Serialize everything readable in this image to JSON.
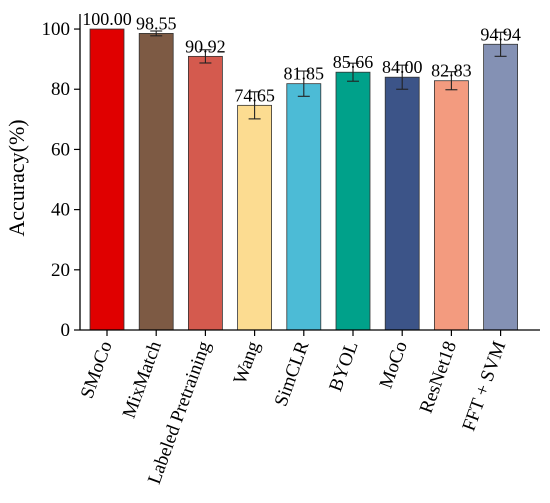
{
  "chart_data": {
    "type": "bar",
    "title": "",
    "xlabel": "",
    "ylabel": "Accuracy(%)",
    "ylim": [
      0,
      105
    ],
    "yticks": [
      0,
      20,
      40,
      60,
      80,
      100
    ],
    "grid": false,
    "categories": [
      "SMoCo",
      "MixMatch",
      "Labeled Pretraining",
      "Wang",
      "SimCLR",
      "BYOL",
      "MoCo",
      "ResNet18",
      "FFT + SVM"
    ],
    "values": [
      100.0,
      98.55,
      90.92,
      74.65,
      81.85,
      85.66,
      84.0,
      82.83,
      94.94
    ],
    "value_labels": [
      "100.00",
      "98.55",
      "90.92",
      "74.65",
      "81.85",
      "85.66",
      "84.00",
      "82.83",
      "94.94"
    ],
    "errors": [
      0,
      0.8,
      2.2,
      4.5,
      4.2,
      3.0,
      4.0,
      3.0,
      4.0
    ],
    "colors": [
      "#e00000",
      "#7d5a44",
      "#d45a4e",
      "#fcdc91",
      "#4cbbd6",
      "#00a18a",
      "#3c5488",
      "#f39b7f",
      "#8491b4"
    ]
  }
}
